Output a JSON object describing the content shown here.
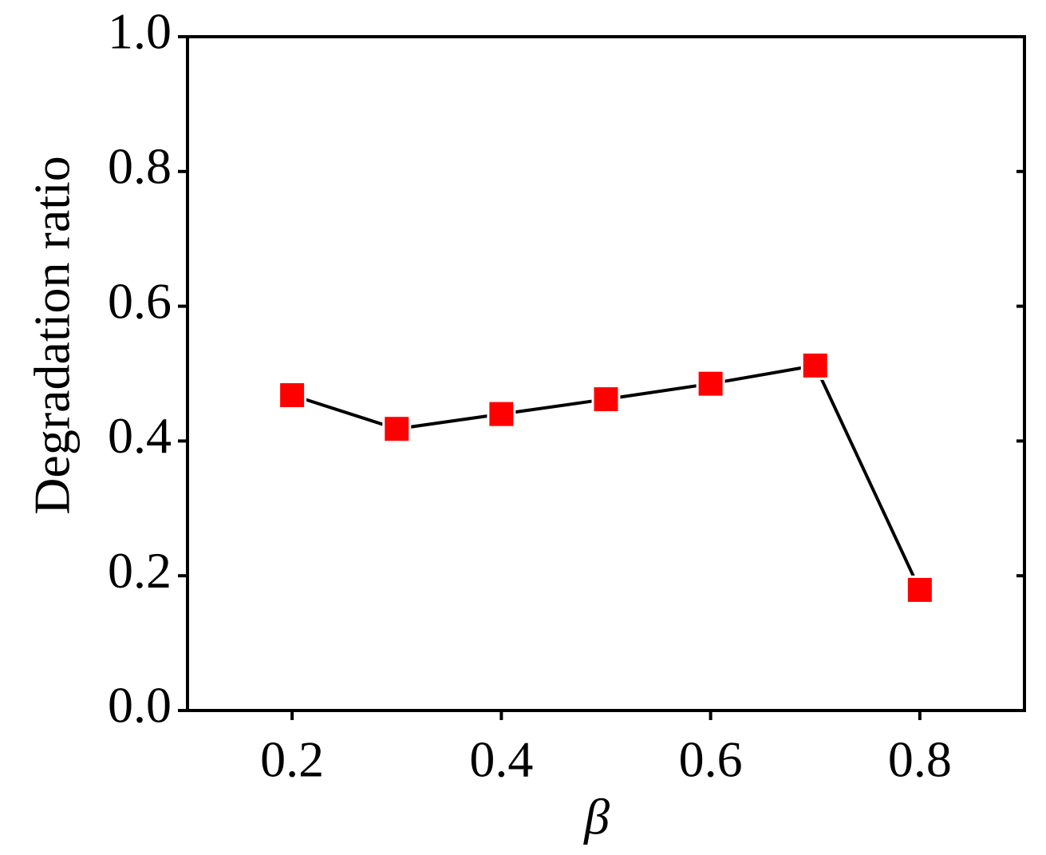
{
  "chart_data": {
    "type": "line",
    "x_label": "β",
    "y_label": "Degradation ratio",
    "x": [
      0.2,
      0.3,
      0.4,
      0.5,
      0.6,
      0.7,
      0.8
    ],
    "series": [
      {
        "color": "#ff0000",
        "values": [
          0.468,
          0.418,
          0.44,
          0.462,
          0.485,
          0.512,
          0.179
        ]
      }
    ],
    "xlim": [
      0.1,
      0.9
    ],
    "ylim": [
      0,
      1
    ],
    "xticks": [
      0.2,
      0.4,
      0.6,
      0.8
    ],
    "yticks": [
      {
        "value": 0,
        "label": "0.0"
      },
      0.2,
      0.4,
      0.6,
      0.8,
      {
        "value": 1,
        "label": "1.0"
      }
    ],
    "line_color": "#000000",
    "grid": false
  }
}
